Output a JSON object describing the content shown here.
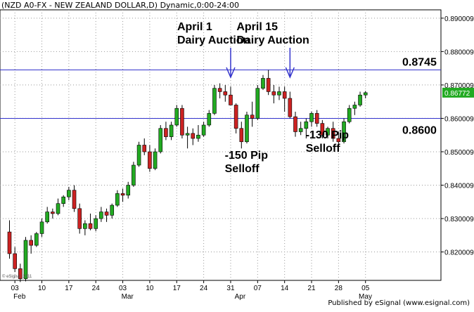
{
  "header": {
    "title": "(NZD A0-FX - NEW ZEALAND DOLLAR,D) Dynamic,0:00-24:00"
  },
  "watermark": "© eSignal, 2011",
  "footer": "Published by eSignal (www.esignal.com)",
  "colors": {
    "up": "#22aa22",
    "down": "#cc2222",
    "level_line": "#3333cc",
    "arrow": "#3333cc",
    "price_label_bg": "#22aa22",
    "grid": "#999999"
  },
  "chart_data": {
    "type": "candlestick",
    "title": "(NZD A0-FX - NEW ZEALAND DOLLAR,D) Dynamic,0:00-24:00",
    "ylim": [
      0.8115,
      0.8925
    ],
    "y_ticks": [
      "0.890009",
      "0.880009",
      "0.870009",
      "0.860009",
      "0.850009",
      "0.840009",
      "0.830009",
      "0.820009"
    ],
    "x_ticks": [
      {
        "label": "03",
        "index": 1
      },
      {
        "label": "10",
        "index": 6
      },
      {
        "label": "17",
        "index": 11
      },
      {
        "label": "24",
        "index": 16
      },
      {
        "label": "03",
        "index": 21
      },
      {
        "label": "10",
        "index": 26
      },
      {
        "label": "17",
        "index": 31
      },
      {
        "label": "24",
        "index": 36
      },
      {
        "label": "31",
        "index": 41
      },
      {
        "label": "07",
        "index": 46
      },
      {
        "label": "14",
        "index": 51
      },
      {
        "label": "21",
        "index": 56
      },
      {
        "label": "28",
        "index": 61
      },
      {
        "label": "05",
        "index": 66
      }
    ],
    "months": [
      {
        "label": "Feb",
        "index": 1
      },
      {
        "label": "Mar",
        "index": 21
      },
      {
        "label": "Apr",
        "index": 42
      },
      {
        "label": "May",
        "index": 65
      }
    ],
    "ohlc": [
      [
        0.826,
        0.8295,
        0.818,
        0.8195
      ],
      [
        0.8195,
        0.8215,
        0.814,
        0.815
      ],
      [
        0.815,
        0.8165,
        0.811,
        0.812
      ],
      [
        0.812,
        0.8245,
        0.8112,
        0.8235
      ],
      [
        0.8235,
        0.825,
        0.8195,
        0.822
      ],
      [
        0.822,
        0.826,
        0.8215,
        0.8255
      ],
      [
        0.8255,
        0.83,
        0.8245,
        0.829
      ],
      [
        0.829,
        0.8335,
        0.8285,
        0.832
      ],
      [
        0.832,
        0.833,
        0.83,
        0.8315
      ],
      [
        0.8315,
        0.836,
        0.831,
        0.8345
      ],
      [
        0.8345,
        0.837,
        0.8335,
        0.8365
      ],
      [
        0.8365,
        0.8395,
        0.8355,
        0.8385
      ],
      [
        0.8385,
        0.84,
        0.832,
        0.833
      ],
      [
        0.833,
        0.8345,
        0.8255,
        0.827
      ],
      [
        0.827,
        0.8295,
        0.825,
        0.8285
      ],
      [
        0.8285,
        0.8315,
        0.8265,
        0.827
      ],
      [
        0.827,
        0.831,
        0.8262,
        0.83
      ],
      [
        0.83,
        0.8335,
        0.829,
        0.832
      ],
      [
        0.832,
        0.833,
        0.829,
        0.831
      ],
      [
        0.831,
        0.8345,
        0.83,
        0.834
      ],
      [
        0.834,
        0.8385,
        0.8335,
        0.8375
      ],
      [
        0.8375,
        0.839,
        0.835,
        0.837
      ],
      [
        0.837,
        0.841,
        0.836,
        0.84
      ],
      [
        0.84,
        0.847,
        0.8395,
        0.846
      ],
      [
        0.846,
        0.853,
        0.8455,
        0.852
      ],
      [
        0.852,
        0.854,
        0.849,
        0.85
      ],
      [
        0.85,
        0.852,
        0.844,
        0.845
      ],
      [
        0.845,
        0.851,
        0.8445,
        0.85
      ],
      [
        0.85,
        0.858,
        0.8495,
        0.857
      ],
      [
        0.857,
        0.859,
        0.8535,
        0.8545
      ],
      [
        0.8545,
        0.859,
        0.8535,
        0.858
      ],
      [
        0.858,
        0.864,
        0.8575,
        0.863
      ],
      [
        0.863,
        0.864,
        0.854,
        0.855
      ],
      [
        0.855,
        0.8575,
        0.851,
        0.8555
      ],
      [
        0.8555,
        0.857,
        0.852,
        0.854
      ],
      [
        0.854,
        0.858,
        0.853,
        0.855
      ],
      [
        0.855,
        0.859,
        0.8545,
        0.858
      ],
      [
        0.858,
        0.8625,
        0.8575,
        0.8615
      ],
      [
        0.8615,
        0.87,
        0.861,
        0.869
      ],
      [
        0.869,
        0.8705,
        0.866,
        0.868
      ],
      [
        0.868,
        0.87,
        0.865,
        0.867
      ],
      [
        0.867,
        0.8695,
        0.864,
        0.864
      ],
      [
        0.864,
        0.8645,
        0.8555,
        0.857
      ],
      [
        0.857,
        0.859,
        0.851,
        0.853
      ],
      [
        0.853,
        0.862,
        0.8525,
        0.861
      ],
      [
        0.861,
        0.865,
        0.8575,
        0.86
      ],
      [
        0.86,
        0.87,
        0.8595,
        0.869
      ],
      [
        0.869,
        0.873,
        0.8685,
        0.872
      ],
      [
        0.872,
        0.8745,
        0.867,
        0.868
      ],
      [
        0.868,
        0.87,
        0.8645,
        0.867
      ],
      [
        0.867,
        0.8695,
        0.8655,
        0.868
      ],
      [
        0.868,
        0.8695,
        0.862,
        0.866
      ],
      [
        0.866,
        0.868,
        0.86,
        0.8605
      ],
      [
        0.8605,
        0.862,
        0.8545,
        0.856
      ],
      [
        0.856,
        0.859,
        0.855,
        0.857
      ],
      [
        0.857,
        0.86,
        0.854,
        0.859
      ],
      [
        0.859,
        0.862,
        0.8575,
        0.8615
      ],
      [
        0.8615,
        0.8625,
        0.8575,
        0.8585
      ],
      [
        0.8585,
        0.8595,
        0.854,
        0.855
      ],
      [
        0.855,
        0.8575,
        0.854,
        0.857
      ],
      [
        0.857,
        0.859,
        0.853,
        0.854
      ],
      [
        0.854,
        0.856,
        0.8515,
        0.853
      ],
      [
        0.853,
        0.86,
        0.8525,
        0.859
      ],
      [
        0.859,
        0.864,
        0.8585,
        0.863
      ],
      [
        0.863,
        0.865,
        0.861,
        0.864
      ],
      [
        0.864,
        0.868,
        0.8635,
        0.867
      ],
      [
        0.867,
        0.8682,
        0.866,
        0.8677
      ]
    ],
    "levels": [
      {
        "value": 0.8745,
        "label": "0.8745"
      },
      {
        "value": 0.86,
        "label": "0.8600"
      }
    ],
    "current_price": {
      "value": 0.8677,
      "label": "0.86772"
    },
    "annotations": [
      {
        "lines": [
          "April 1",
          "Dairy Auction"
        ],
        "arrow_index": 41
      },
      {
        "lines": [
          "April 15",
          "Dairy Auction"
        ],
        "arrow_index": 52
      },
      {
        "lines": [
          "-150 Pip",
          "Selloff"
        ],
        "index": 42
      },
      {
        "lines": [
          "-130 Pip",
          "Selloff"
        ],
        "index": 57
      }
    ]
  }
}
